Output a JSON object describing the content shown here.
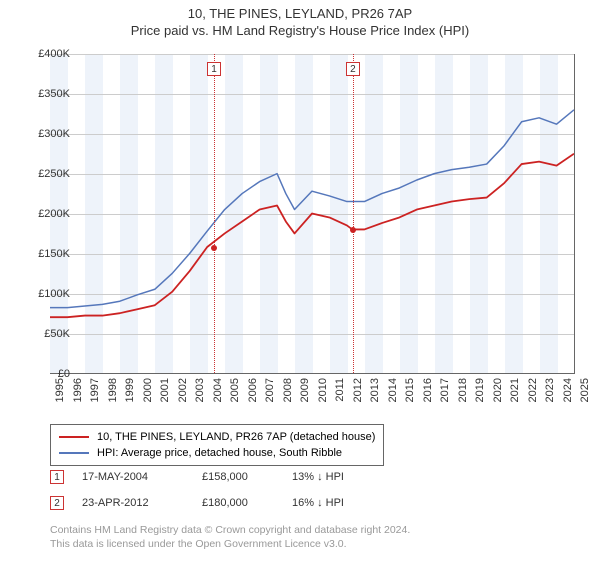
{
  "title": "10, THE PINES, LEYLAND, PR26 7AP",
  "subtitle": "Price paid vs. HM Land Registry's House Price Index (HPI)",
  "chart": {
    "type": "line",
    "background_color": "#ffffff",
    "grid_color": "#cccccc",
    "band_color": "#eef3fa",
    "axis_color": "#666666",
    "text_color": "#333333",
    "label_fontsize": 11,
    "title_fontsize": 13,
    "xlim": [
      1995,
      2025
    ],
    "ylim": [
      0,
      400000
    ],
    "ytick_step": 50000,
    "ytick_labels": [
      "£0",
      "£50K",
      "£100K",
      "£150K",
      "£200K",
      "£250K",
      "£300K",
      "£350K",
      "£400K"
    ],
    "xtick_step": 1,
    "xtick_labels": [
      "1995",
      "1996",
      "1997",
      "1998",
      "1999",
      "2000",
      "2001",
      "2002",
      "2003",
      "2004",
      "2005",
      "2006",
      "2007",
      "2008",
      "2009",
      "2010",
      "2011",
      "2012",
      "2013",
      "2014",
      "2015",
      "2016",
      "2017",
      "2018",
      "2019",
      "2020",
      "2021",
      "2022",
      "2023",
      "2024",
      "2025"
    ],
    "band_years_odd": true,
    "markers": [
      {
        "id": "1",
        "x": 2004.37,
        "label_y": 390000
      },
      {
        "id": "2",
        "x": 2012.31,
        "label_y": 390000
      }
    ],
    "sale_points": [
      {
        "x": 2004.37,
        "y": 158000
      },
      {
        "x": 2012.31,
        "y": 180000
      }
    ],
    "series": [
      {
        "name": "property",
        "color": "#cc2222",
        "line_width": 1.8,
        "data": [
          [
            1995,
            70000
          ],
          [
            1996,
            70000
          ],
          [
            1997,
            72000
          ],
          [
            1998,
            72000
          ],
          [
            1999,
            75000
          ],
          [
            2000,
            80000
          ],
          [
            2001,
            85000
          ],
          [
            2002,
            102000
          ],
          [
            2003,
            128000
          ],
          [
            2004,
            158000
          ],
          [
            2005,
            175000
          ],
          [
            2006,
            190000
          ],
          [
            2007,
            205000
          ],
          [
            2008,
            210000
          ],
          [
            2008.5,
            190000
          ],
          [
            2009,
            175000
          ],
          [
            2010,
            200000
          ],
          [
            2011,
            195000
          ],
          [
            2012,
            185000
          ],
          [
            2012.31,
            180000
          ],
          [
            2013,
            180000
          ],
          [
            2014,
            188000
          ],
          [
            2015,
            195000
          ],
          [
            2016,
            205000
          ],
          [
            2017,
            210000
          ],
          [
            2018,
            215000
          ],
          [
            2019,
            218000
          ],
          [
            2020,
            220000
          ],
          [
            2021,
            238000
          ],
          [
            2022,
            262000
          ],
          [
            2023,
            265000
          ],
          [
            2024,
            260000
          ],
          [
            2025,
            275000
          ]
        ]
      },
      {
        "name": "hpi",
        "color": "#5577bb",
        "line_width": 1.5,
        "data": [
          [
            1995,
            82000
          ],
          [
            1996,
            82000
          ],
          [
            1997,
            84000
          ],
          [
            1998,
            86000
          ],
          [
            1999,
            90000
          ],
          [
            2000,
            98000
          ],
          [
            2001,
            105000
          ],
          [
            2002,
            125000
          ],
          [
            2003,
            150000
          ],
          [
            2004,
            178000
          ],
          [
            2005,
            205000
          ],
          [
            2006,
            225000
          ],
          [
            2007,
            240000
          ],
          [
            2008,
            250000
          ],
          [
            2008.5,
            225000
          ],
          [
            2009,
            205000
          ],
          [
            2010,
            228000
          ],
          [
            2011,
            222000
          ],
          [
            2012,
            215000
          ],
          [
            2013,
            215000
          ],
          [
            2014,
            225000
          ],
          [
            2015,
            232000
          ],
          [
            2016,
            242000
          ],
          [
            2017,
            250000
          ],
          [
            2018,
            255000
          ],
          [
            2019,
            258000
          ],
          [
            2020,
            262000
          ],
          [
            2021,
            285000
          ],
          [
            2022,
            315000
          ],
          [
            2023,
            320000
          ],
          [
            2024,
            312000
          ],
          [
            2025,
            330000
          ]
        ]
      }
    ]
  },
  "legend": {
    "items": [
      {
        "color": "#cc2222",
        "label": "10, THE PINES, LEYLAND, PR26 7AP (detached house)"
      },
      {
        "color": "#5577bb",
        "label": "HPI: Average price, detached house, South Ribble"
      }
    ]
  },
  "sales": [
    {
      "id": "1",
      "date": "17-MAY-2004",
      "price": "£158,000",
      "pct": "13% ↓ HPI"
    },
    {
      "id": "2",
      "date": "23-APR-2012",
      "price": "£180,000",
      "pct": "16% ↓ HPI"
    }
  ],
  "footer": {
    "line1": "Contains HM Land Registry data © Crown copyright and database right 2024.",
    "line2": "This data is licensed under the Open Government Licence v3.0."
  },
  "colors": {
    "marker_border": "#cc3333",
    "footer_text": "#999999"
  }
}
